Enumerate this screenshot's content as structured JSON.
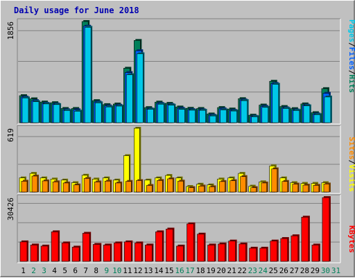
{
  "title": "Daily usage for June 2018",
  "colors": {
    "background": "#c0c0c0",
    "panel": "#bebebe",
    "title": "#0000b0",
    "hits": "#00805a",
    "files": "#0060ff",
    "pages": "#00c8e8",
    "visits": "#ffff00",
    "sites": "#ff8c00",
    "kbytes": "#ff0000",
    "weekend_day_label": "#00805a",
    "weekday_day_label": "#000000"
  },
  "right_labels": {
    "top": [
      "Pages",
      "/",
      "Files",
      "/",
      "Hits"
    ],
    "middle": [
      "Sites",
      "/",
      "Visits"
    ],
    "bottom": [
      "KBytes"
    ]
  },
  "chart_data": [
    {
      "type": "bar",
      "name": "hits-files-pages",
      "title": "Daily usage for June 2018",
      "ymax_label": "1856",
      "ylim": [
        0,
        1856
      ],
      "gridlines": 3,
      "categories": [
        "1",
        "2",
        "3",
        "4",
        "5",
        "6",
        "7",
        "8",
        "9",
        "10",
        "11",
        "12",
        "13",
        "14",
        "15",
        "16",
        "17",
        "18",
        "19",
        "20",
        "21",
        "22",
        "23",
        "24",
        "25",
        "26",
        "27",
        "28",
        "29",
        "30",
        "31"
      ],
      "series": [
        {
          "name": "Hits",
          "values": [
            496,
            438,
            379,
            367,
            261,
            261,
            1856,
            405,
            332,
            343,
            999,
            1509,
            277,
            378,
            355,
            288,
            264,
            261,
            160,
            278,
            251,
            441,
            138,
            324,
            760,
            297,
            258,
            345,
            184,
            625,
            0
          ]
        },
        {
          "name": "Files",
          "values": [
            470,
            404,
            355,
            343,
            237,
            237,
            1770,
            380,
            308,
            320,
            920,
            1320,
            253,
            354,
            332,
            264,
            240,
            237,
            138,
            254,
            227,
            417,
            118,
            300,
            720,
            273,
            234,
            322,
            160,
            540,
            0
          ]
        },
        {
          "name": "Pages",
          "values": [
            455,
            385,
            345,
            333,
            225,
            211,
            1750,
            365,
            290,
            305,
            880,
            1265,
            247,
            340,
            322,
            245,
            230,
            228,
            125,
            235,
            215,
            405,
            110,
            282,
            705,
            262,
            225,
            310,
            148,
            472,
            0
          ]
        }
      ]
    },
    {
      "type": "bar",
      "name": "visits-sites",
      "ymax_label": "619",
      "ylim": [
        0,
        619
      ],
      "gridlines": 2,
      "categories": [
        "1",
        "2",
        "3",
        "4",
        "5",
        "6",
        "7",
        "8",
        "9",
        "10",
        "11",
        "12",
        "13",
        "14",
        "15",
        "16",
        "17",
        "18",
        "19",
        "20",
        "21",
        "22",
        "23",
        "24",
        "25",
        "26",
        "27",
        "28",
        "29",
        "30",
        "31"
      ],
      "series": [
        {
          "name": "Visits",
          "values": [
            137,
            181,
            137,
            126,
            116,
            91,
            163,
            126,
            137,
            116,
            353,
            619,
            116,
            137,
            161,
            137,
            54,
            76,
            69,
            126,
            137,
            181,
            57,
            99,
            254,
            137,
            91,
            84,
            84,
            91,
            0
          ]
        },
        {
          "name": "Sites",
          "values": [
            105,
            155,
            108,
            99,
            88,
            69,
            132,
            98,
            106,
            88,
            103,
            111,
            64,
            112,
            128,
            106,
            43,
            58,
            51,
            102,
            110,
            150,
            43,
            88,
            225,
            103,
            77,
            67,
            65,
            78,
            0
          ]
        }
      ]
    },
    {
      "type": "bar",
      "name": "kbytes",
      "ymax_label": "30426",
      "ylim": [
        0,
        30426
      ],
      "gridlines": 3,
      "categories": [
        "1",
        "2",
        "3",
        "4",
        "5",
        "6",
        "7",
        "8",
        "9",
        "10",
        "11",
        "12",
        "13",
        "14",
        "15",
        "16",
        "17",
        "18",
        "19",
        "20",
        "21",
        "22",
        "23",
        "24",
        "25",
        "26",
        "27",
        "28",
        "29",
        "30",
        "31"
      ],
      "series": [
        {
          "name": "KBytes",
          "values": [
            9300,
            7800,
            7300,
            14100,
            8800,
            6800,
            13400,
            8100,
            7800,
            8800,
            9300,
            8800,
            7800,
            14100,
            15400,
            7300,
            17900,
            13000,
            7800,
            8300,
            9700,
            8300,
            6300,
            6300,
            9700,
            10900,
            12200,
            21100,
            7800,
            30426,
            0
          ]
        }
      ]
    }
  ]
}
